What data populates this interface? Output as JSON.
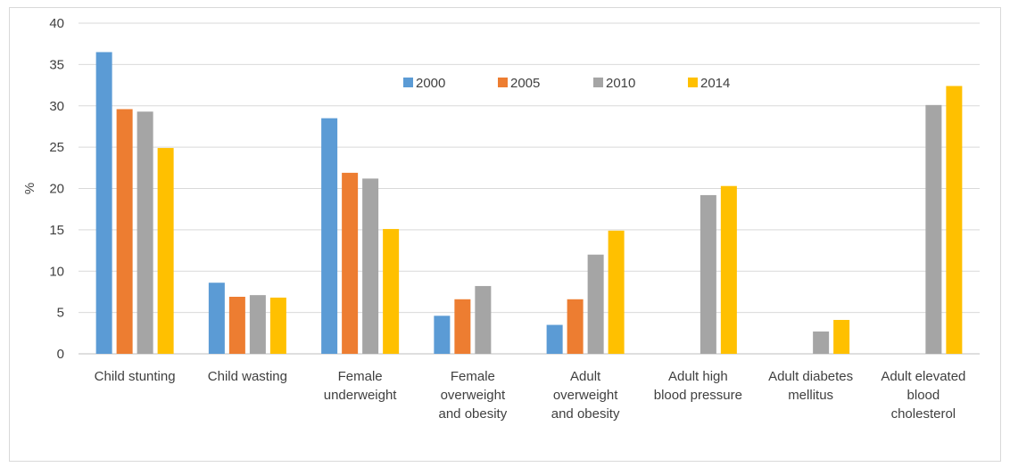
{
  "chart_data": {
    "type": "bar",
    "title": "",
    "xlabel": "",
    "ylabel": "%",
    "ylim": [
      0,
      40
    ],
    "yticks": [
      0,
      5,
      10,
      15,
      20,
      25,
      30,
      35,
      40
    ],
    "grid": true,
    "legend_position": "top-center",
    "categories": [
      [
        "Child stunting"
      ],
      [
        "Child wasting"
      ],
      [
        "Female",
        "underweight"
      ],
      [
        "Female",
        "overweight",
        "and obesity"
      ],
      [
        "Adult",
        "overweight",
        "and obesity"
      ],
      [
        "Adult high",
        "blood pressure"
      ],
      [
        "Adult diabetes",
        "mellitus"
      ],
      [
        "Adult elevated",
        "blood",
        "cholesterol"
      ]
    ],
    "series": [
      {
        "name": "2000",
        "color": "#5b9bd5",
        "values": [
          36.5,
          8.6,
          28.5,
          4.6,
          3.5,
          null,
          null,
          null
        ]
      },
      {
        "name": "2005",
        "color": "#ed7d31",
        "values": [
          29.6,
          6.9,
          21.9,
          6.6,
          6.6,
          null,
          null,
          null
        ]
      },
      {
        "name": "2010",
        "color": "#a5a5a5",
        "values": [
          29.3,
          7.1,
          21.2,
          8.2,
          12.0,
          19.2,
          2.7,
          30.1
        ]
      },
      {
        "name": "2014",
        "color": "#ffc000",
        "values": [
          24.9,
          6.8,
          15.1,
          null,
          14.9,
          20.3,
          4.1,
          32.4
        ]
      }
    ]
  }
}
